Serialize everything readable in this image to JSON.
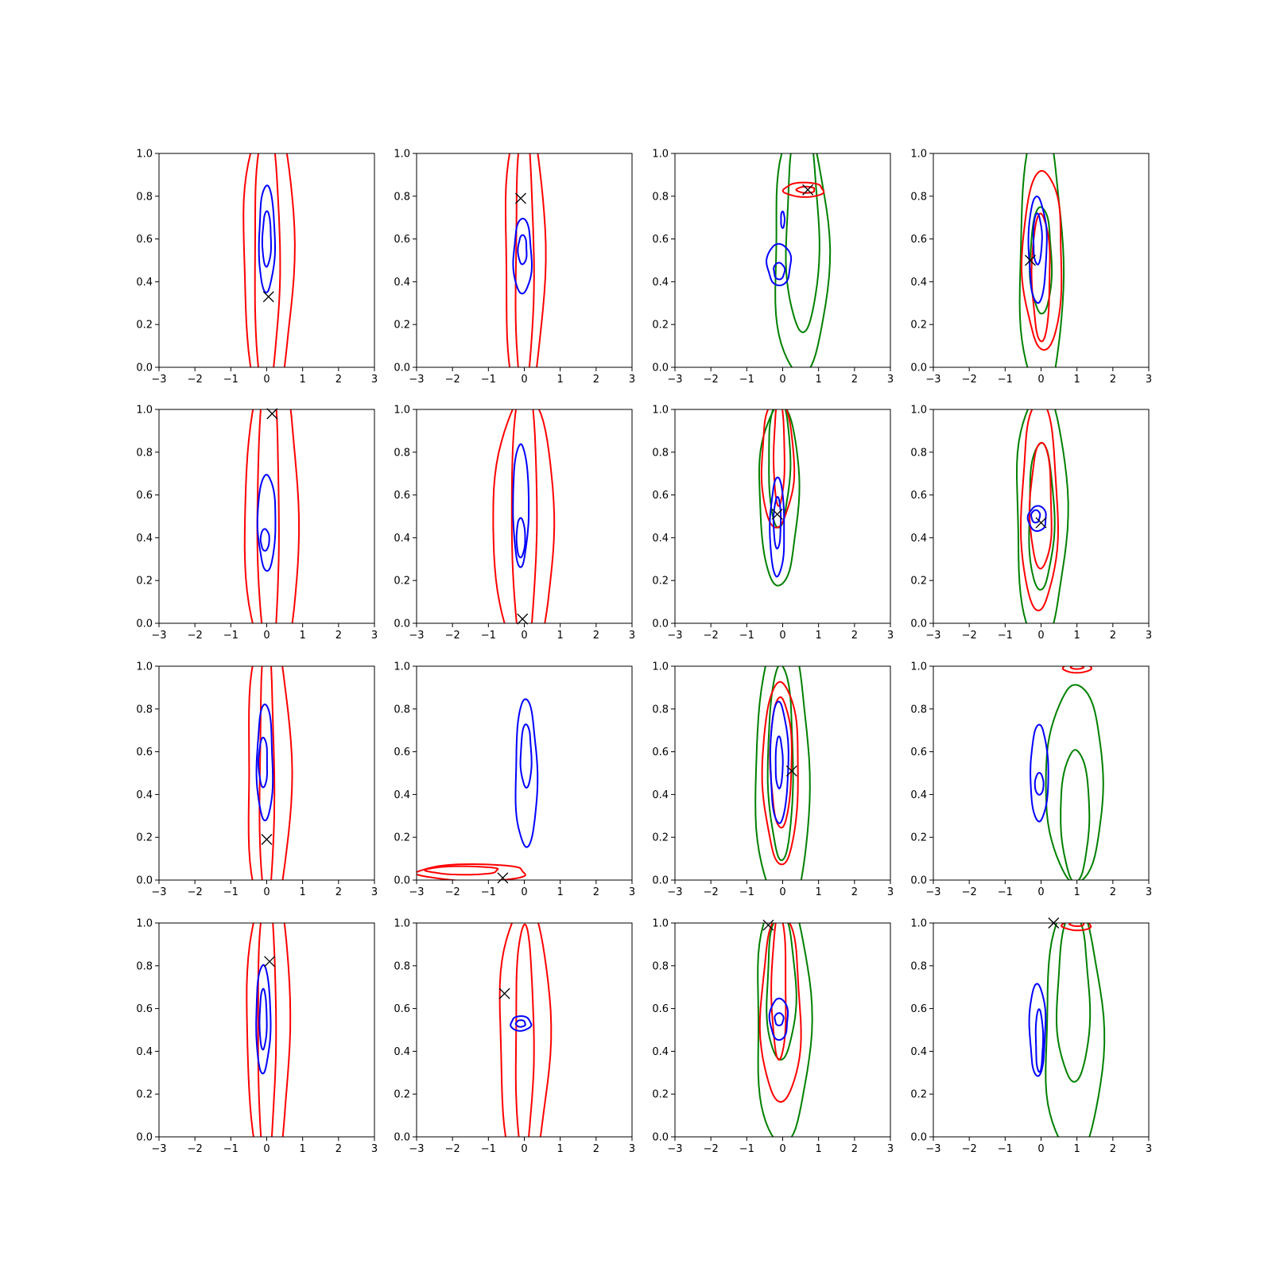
{
  "figure": {
    "rows": 4,
    "cols": 4
  },
  "colors": {
    "red": "#ff0000",
    "blue": "#0000ff",
    "green": "#008000",
    "marker": "#000000"
  },
  "chart_data": {
    "type": "contour",
    "layout": "4x4 grid of panels",
    "xlim": [
      -3,
      3
    ],
    "ylim": [
      0,
      1
    ],
    "xticks": [
      -3,
      -2,
      -1,
      0,
      1,
      2,
      3
    ],
    "xtick_labels": [
      "−3",
      "−2",
      "−1",
      "0",
      "1",
      "2",
      "3"
    ],
    "yticks": [
      0,
      0.2,
      0.4,
      0.6,
      0.8,
      1.0
    ],
    "ytick_labels": [
      "0.0",
      "0.2",
      "0.4",
      "0.6",
      "0.8",
      "1.0"
    ],
    "grid": false,
    "marker_symbol": "x",
    "panels": [
      {
        "row": 0,
        "col": 0,
        "marker": [
          0.05,
          0.33
        ],
        "contours": [
          {
            "color": "red",
            "level": 1,
            "cx": 0.05,
            "cy": 0.5,
            "rx": 0.7,
            "ry": 0.7
          },
          {
            "color": "red",
            "level": 2,
            "cx": 0.0,
            "cy": 0.5,
            "rx": 0.35,
            "ry": 0.65
          },
          {
            "color": "blue",
            "level": 1,
            "cx": 0.0,
            "cy": 0.6,
            "rx": 0.22,
            "ry": 0.25
          },
          {
            "color": "blue",
            "level": 2,
            "cx": 0.0,
            "cy": 0.6,
            "rx": 0.12,
            "ry": 0.13
          }
        ]
      },
      {
        "row": 0,
        "col": 1,
        "marker": [
          -0.1,
          0.79
        ],
        "contours": [
          {
            "color": "red",
            "level": 1,
            "cx": 0.0,
            "cy": 0.5,
            "rx": 0.55,
            "ry": 0.7
          },
          {
            "color": "red",
            "level": 2,
            "cx": 0.0,
            "cy": 0.5,
            "rx": 0.25,
            "ry": 0.65
          },
          {
            "color": "blue",
            "level": 1,
            "cx": -0.05,
            "cy": 0.52,
            "rx": 0.25,
            "ry": 0.18
          },
          {
            "color": "blue",
            "level": 2,
            "cx": -0.05,
            "cy": 0.55,
            "rx": 0.12,
            "ry": 0.07
          }
        ]
      },
      {
        "row": 0,
        "col": 2,
        "marker": [
          0.7,
          0.83
        ],
        "contours": [
          {
            "color": "green",
            "level": 1,
            "cx": 0.5,
            "cy": 0.55,
            "rx": 0.75,
            "ry": 0.6
          },
          {
            "color": "green",
            "level": 2,
            "cx": 0.55,
            "cy": 0.65,
            "rx": 0.45,
            "ry": 0.5
          },
          {
            "color": "red",
            "level": 1,
            "cx": 0.6,
            "cy": 0.83,
            "rx": 0.55,
            "ry": 0.035
          },
          {
            "color": "red",
            "level": 2,
            "cx": 0.65,
            "cy": 0.83,
            "rx": 0.25,
            "ry": 0.015
          },
          {
            "color": "blue",
            "level": 1,
            "cx": -0.1,
            "cy": 0.48,
            "rx": 0.33,
            "ry": 0.1
          },
          {
            "color": "blue",
            "level": 2,
            "cx": -0.1,
            "cy": 0.45,
            "rx": 0.15,
            "ry": 0.04
          },
          {
            "color": "blue",
            "level": 1,
            "cx": 0.0,
            "cy": 0.69,
            "rx": 0.05,
            "ry": 0.04
          }
        ]
      },
      {
        "row": 0,
        "col": 3,
        "marker": [
          -0.3,
          0.5
        ],
        "contours": [
          {
            "color": "green",
            "level": 1,
            "cx": 0.0,
            "cy": 0.5,
            "rx": 0.6,
            "ry": 0.65
          },
          {
            "color": "green",
            "level": 2,
            "cx": 0.0,
            "cy": 0.5,
            "rx": 0.3,
            "ry": 0.25
          },
          {
            "color": "red",
            "level": 1,
            "cx": 0.05,
            "cy": 0.5,
            "rx": 0.55,
            "ry": 0.42
          },
          {
            "color": "red",
            "level": 2,
            "cx": 0.0,
            "cy": 0.42,
            "rx": 0.25,
            "ry": 0.3
          },
          {
            "color": "blue",
            "level": 1,
            "cx": -0.1,
            "cy": 0.55,
            "rx": 0.25,
            "ry": 0.25
          },
          {
            "color": "blue",
            "level": 2,
            "cx": -0.1,
            "cy": 0.6,
            "rx": 0.12,
            "ry": 0.12
          }
        ]
      },
      {
        "row": 1,
        "col": 0,
        "marker": [
          0.15,
          0.98
        ],
        "contours": [
          {
            "color": "red",
            "level": 1,
            "cx": 0.15,
            "cy": 0.5,
            "rx": 0.75,
            "ry": 0.72
          },
          {
            "color": "red",
            "level": 2,
            "cx": 0.05,
            "cy": 0.5,
            "rx": 0.3,
            "ry": 0.7
          },
          {
            "color": "blue",
            "level": 1,
            "cx": 0.0,
            "cy": 0.47,
            "rx": 0.25,
            "ry": 0.22
          },
          {
            "color": "blue",
            "level": 2,
            "cx": -0.05,
            "cy": 0.39,
            "rx": 0.12,
            "ry": 0.05
          }
        ]
      },
      {
        "row": 1,
        "col": 1,
        "marker": [
          -0.05,
          0.02
        ],
        "contours": [
          {
            "color": "red",
            "level": 1,
            "cx": 0.0,
            "cy": 0.45,
            "rx": 0.85,
            "ry": 0.6
          },
          {
            "color": "red",
            "level": 2,
            "cx": 0.0,
            "cy": 0.5,
            "rx": 0.35,
            "ry": 0.65
          },
          {
            "color": "blue",
            "level": 1,
            "cx": -0.1,
            "cy": 0.55,
            "rx": 0.22,
            "ry": 0.28
          },
          {
            "color": "blue",
            "level": 2,
            "cx": -0.1,
            "cy": 0.4,
            "rx": 0.12,
            "ry": 0.09
          }
        ]
      },
      {
        "row": 1,
        "col": 2,
        "marker": [
          -0.15,
          0.51
        ],
        "contours": [
          {
            "color": "green",
            "level": 1,
            "cx": -0.1,
            "cy": 0.6,
            "rx": 0.55,
            "ry": 0.42
          },
          {
            "color": "green",
            "level": 2,
            "cx": -0.1,
            "cy": 0.75,
            "rx": 0.3,
            "ry": 0.3
          },
          {
            "color": "red",
            "level": 1,
            "cx": -0.15,
            "cy": 0.75,
            "rx": 0.45,
            "ry": 0.3
          },
          {
            "color": "red",
            "level": 2,
            "cx": -0.1,
            "cy": 0.8,
            "rx": 0.15,
            "ry": 0.25
          },
          {
            "color": "blue",
            "level": 1,
            "cx": -0.15,
            "cy": 0.45,
            "rx": 0.2,
            "ry": 0.23
          },
          {
            "color": "blue",
            "level": 2,
            "cx": -0.15,
            "cy": 0.47,
            "rx": 0.1,
            "ry": 0.12
          }
        ]
      },
      {
        "row": 1,
        "col": 3,
        "marker": [
          0.0,
          0.47
        ],
        "contours": [
          {
            "color": "green",
            "level": 1,
            "cx": 0.0,
            "cy": 0.5,
            "rx": 0.7,
            "ry": 0.6
          },
          {
            "color": "green",
            "level": 2,
            "cx": 0.0,
            "cy": 0.5,
            "rx": 0.35,
            "ry": 0.35
          },
          {
            "color": "red",
            "level": 1,
            "cx": -0.05,
            "cy": 0.55,
            "rx": 0.5,
            "ry": 0.5
          },
          {
            "color": "red",
            "level": 2,
            "cx": 0.0,
            "cy": 0.55,
            "rx": 0.3,
            "ry": 0.3
          },
          {
            "color": "blue",
            "level": 1,
            "cx": -0.1,
            "cy": 0.49,
            "rx": 0.25,
            "ry": 0.06
          },
          {
            "color": "blue",
            "level": 2,
            "cx": -0.15,
            "cy": 0.5,
            "rx": 0.12,
            "ry": 0.03
          }
        ]
      },
      {
        "row": 2,
        "col": 0,
        "marker": [
          0.0,
          0.19
        ],
        "contours": [
          {
            "color": "red",
            "level": 1,
            "cx": 0.05,
            "cy": 0.5,
            "rx": 0.6,
            "ry": 0.7
          },
          {
            "color": "red",
            "level": 2,
            "cx": 0.0,
            "cy": 0.5,
            "rx": 0.2,
            "ry": 0.65
          },
          {
            "color": "blue",
            "level": 1,
            "cx": -0.05,
            "cy": 0.55,
            "rx": 0.22,
            "ry": 0.28
          },
          {
            "color": "blue",
            "level": 2,
            "cx": -0.1,
            "cy": 0.55,
            "rx": 0.12,
            "ry": 0.12
          }
        ]
      },
      {
        "row": 2,
        "col": 1,
        "marker": [
          -0.6,
          0.01
        ],
        "contours": [
          {
            "color": "blue",
            "level": 1,
            "cx": 0.05,
            "cy": 0.5,
            "rx": 0.3,
            "ry": 0.35
          },
          {
            "color": "blue",
            "level": 2,
            "cx": 0.05,
            "cy": 0.58,
            "rx": 0.15,
            "ry": 0.15
          },
          {
            "color": "red",
            "level": 1,
            "cx": -1.4,
            "cy": 0.035,
            "rx": 1.5,
            "ry": 0.04
          },
          {
            "color": "red",
            "level": 2,
            "cx": -1.7,
            "cy": 0.045,
            "rx": 1.0,
            "ry": 0.02
          }
        ]
      },
      {
        "row": 2,
        "col": 2,
        "marker": [
          0.25,
          0.51
        ],
        "contours": [
          {
            "color": "green",
            "level": 1,
            "cx": 0.0,
            "cy": 0.5,
            "rx": 0.75,
            "ry": 0.65
          },
          {
            "color": "green",
            "level": 2,
            "cx": -0.05,
            "cy": 0.55,
            "rx": 0.35,
            "ry": 0.45
          },
          {
            "color": "red",
            "level": 1,
            "cx": -0.05,
            "cy": 0.5,
            "rx": 0.5,
            "ry": 0.42
          },
          {
            "color": "red",
            "level": 2,
            "cx": -0.05,
            "cy": 0.55,
            "rx": 0.3,
            "ry": 0.3
          },
          {
            "color": "blue",
            "level": 1,
            "cx": -0.1,
            "cy": 0.55,
            "rx": 0.25,
            "ry": 0.28
          },
          {
            "color": "blue",
            "level": 2,
            "cx": -0.1,
            "cy": 0.55,
            "rx": 0.1,
            "ry": 0.12
          }
        ]
      },
      {
        "row": 2,
        "col": 3,
        "marker": null,
        "contours": [
          {
            "color": "green",
            "level": 1,
            "cx": 0.95,
            "cy": 0.45,
            "rx": 0.8,
            "ry": 0.45
          },
          {
            "color": "green",
            "level": 2,
            "cx": 0.95,
            "cy": 0.3,
            "rx": 0.4,
            "ry": 0.3
          },
          {
            "color": "red",
            "level": 1,
            "cx": 1.0,
            "cy": 0.99,
            "rx": 0.4,
            "ry": 0.02
          },
          {
            "color": "red",
            "level": 2,
            "cx": 1.0,
            "cy": 0.995,
            "rx": 0.18,
            "ry": 0.008
          },
          {
            "color": "blue",
            "level": 1,
            "cx": -0.05,
            "cy": 0.5,
            "rx": 0.25,
            "ry": 0.22
          },
          {
            "color": "blue",
            "level": 2,
            "cx": -0.05,
            "cy": 0.45,
            "rx": 0.12,
            "ry": 0.05
          }
        ]
      },
      {
        "row": 3,
        "col": 0,
        "marker": [
          0.08,
          0.82
        ],
        "contours": [
          {
            "color": "red",
            "level": 1,
            "cx": 0.05,
            "cy": 0.5,
            "rx": 0.6,
            "ry": 0.7
          },
          {
            "color": "red",
            "level": 2,
            "cx": 0.0,
            "cy": 0.5,
            "rx": 0.25,
            "ry": 0.65
          },
          {
            "color": "blue",
            "level": 1,
            "cx": -0.1,
            "cy": 0.55,
            "rx": 0.2,
            "ry": 0.25
          },
          {
            "color": "blue",
            "level": 2,
            "cx": -0.1,
            "cy": 0.55,
            "rx": 0.1,
            "ry": 0.14
          }
        ]
      },
      {
        "row": 3,
        "col": 1,
        "marker": [
          -0.55,
          0.67
        ],
        "contours": [
          {
            "color": "red",
            "level": 1,
            "cx": 0.0,
            "cy": 0.45,
            "rx": 0.7,
            "ry": 0.65
          },
          {
            "color": "red",
            "level": 2,
            "cx": 0.0,
            "cy": 0.45,
            "rx": 0.25,
            "ry": 0.55
          },
          {
            "color": "blue",
            "level": 1,
            "cx": -0.1,
            "cy": 0.53,
            "rx": 0.28,
            "ry": 0.035
          },
          {
            "color": "blue",
            "level": 2,
            "cx": -0.1,
            "cy": 0.53,
            "rx": 0.13,
            "ry": 0.016
          }
        ]
      },
      {
        "row": 3,
        "col": 2,
        "marker": [
          -0.4,
          0.99
        ],
        "contours": [
          {
            "color": "green",
            "level": 1,
            "cx": 0.0,
            "cy": 0.55,
            "rx": 0.75,
            "ry": 0.6
          },
          {
            "color": "green",
            "level": 2,
            "cx": -0.05,
            "cy": 0.7,
            "rx": 0.4,
            "ry": 0.35
          },
          {
            "color": "red",
            "level": 1,
            "cx": -0.05,
            "cy": 0.6,
            "rx": 0.55,
            "ry": 0.45
          },
          {
            "color": "red",
            "level": 2,
            "cx": -0.1,
            "cy": 0.7,
            "rx": 0.2,
            "ry": 0.35
          },
          {
            "color": "blue",
            "level": 1,
            "cx": -0.1,
            "cy": 0.55,
            "rx": 0.25,
            "ry": 0.1
          },
          {
            "color": "blue",
            "level": 2,
            "cx": -0.1,
            "cy": 0.55,
            "rx": 0.12,
            "ry": 0.03
          }
        ]
      },
      {
        "row": 3,
        "col": 3,
        "marker": [
          0.35,
          1.0
        ],
        "contours": [
          {
            "color": "green",
            "level": 1,
            "cx": 0.9,
            "cy": 0.5,
            "rx": 0.8,
            "ry": 0.6
          },
          {
            "color": "green",
            "level": 2,
            "cx": 0.9,
            "cy": 0.65,
            "rx": 0.45,
            "ry": 0.4
          },
          {
            "color": "red",
            "level": 1,
            "cx": 1.0,
            "cy": 0.99,
            "rx": 0.4,
            "ry": 0.025
          },
          {
            "color": "red",
            "level": 2,
            "cx": 1.0,
            "cy": 0.995,
            "rx": 0.2,
            "ry": 0.01
          },
          {
            "color": "blue",
            "level": 1,
            "cx": -0.1,
            "cy": 0.5,
            "rx": 0.22,
            "ry": 0.22
          },
          {
            "color": "blue",
            "level": 2,
            "cx": -0.05,
            "cy": 0.45,
            "rx": 0.1,
            "ry": 0.15
          }
        ]
      }
    ]
  }
}
